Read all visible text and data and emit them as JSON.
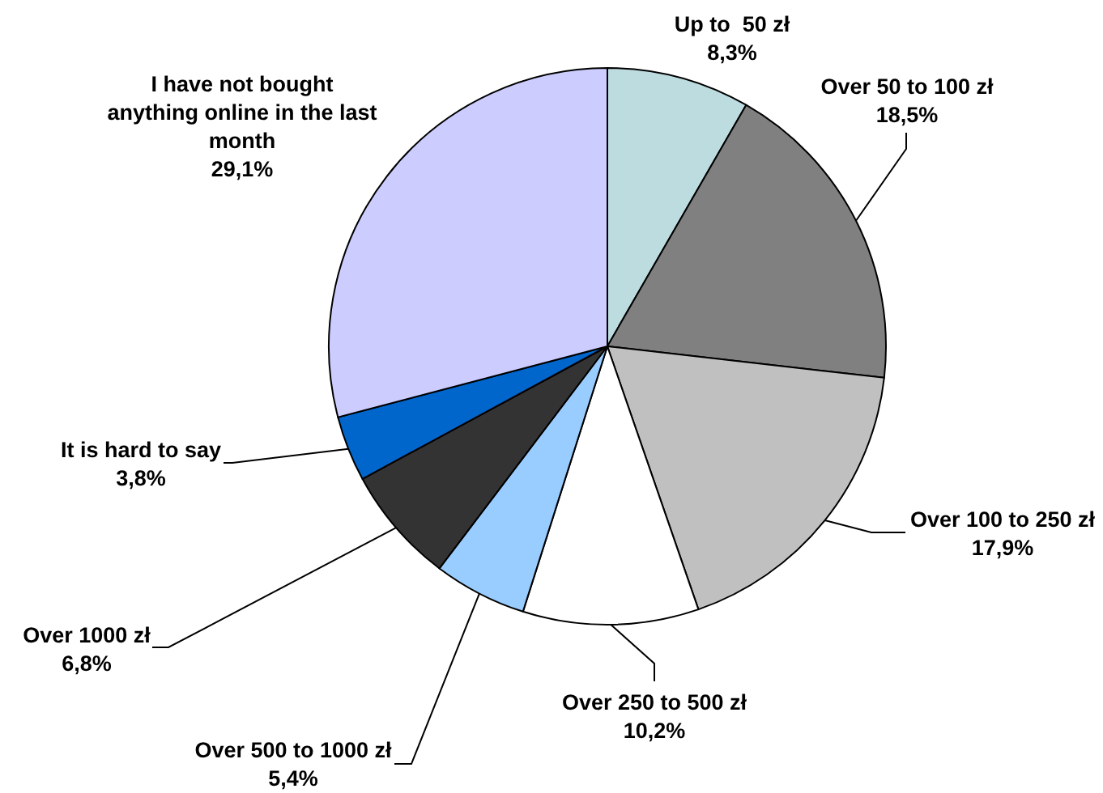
{
  "chart_data": {
    "type": "pie",
    "categories": [
      "Up to  50 zł",
      "Over 50 to 100 zł",
      "Over 100 to 250 zł",
      "Over 250 to 500 zł",
      "Over 500 to 1000 zł",
      "Over 1000 zł",
      "It is hard to say",
      "I have not bought anything online in the last month"
    ],
    "values": [
      8.3,
      18.5,
      17.9,
      10.2,
      5.4,
      6.8,
      3.8,
      29.1
    ],
    "colors": [
      "#bddcdf",
      "#808080",
      "#c0c0c0",
      "#ffffff",
      "#99ccff",
      "#333333",
      "#0066cc",
      "#ccccff"
    ],
    "value_labels": [
      "8,3%",
      "18,5%",
      "17,9%",
      "10,2%",
      "5,4%",
      "6,8%",
      "3,8%",
      "29,1%"
    ]
  }
}
